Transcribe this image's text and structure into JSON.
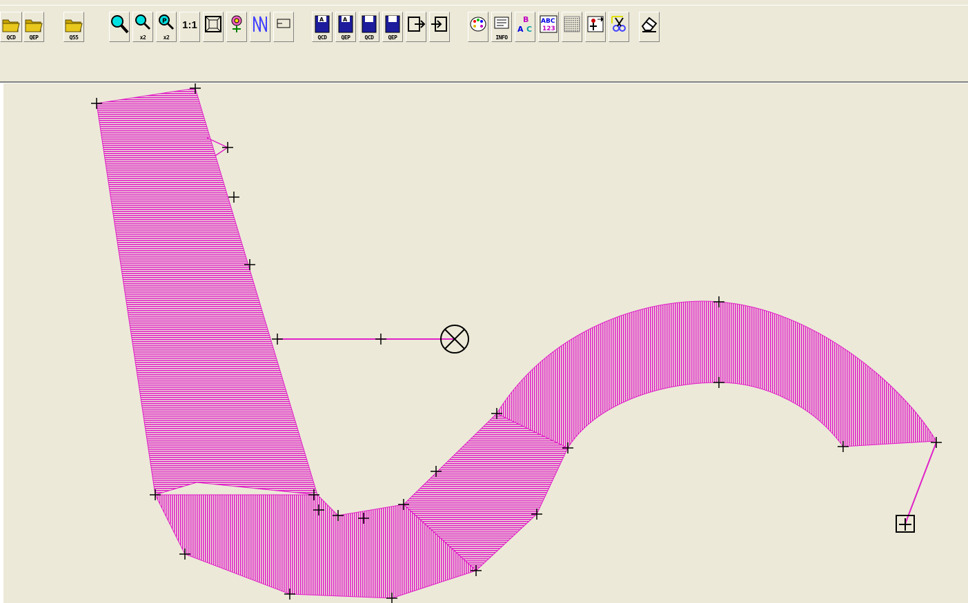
{
  "toolbar": {
    "open_group": [
      {
        "icon": "folder-icon",
        "label": "QCD"
      },
      {
        "icon": "folder-icon",
        "label": "QEP"
      },
      {
        "icon": "folder-icon",
        "label": "Q55"
      }
    ],
    "zoom_group": [
      {
        "icon": "zoom-icon",
        "label": ""
      },
      {
        "icon": "zoom-x2-icon",
        "label": "x2"
      },
      {
        "icon": "zoom-p-x2-icon",
        "label": "x2"
      },
      {
        "icon": "actual-size-icon",
        "label": "1:1"
      },
      {
        "icon": "fit-view-icon",
        "label": ""
      },
      {
        "icon": "flower-icon",
        "label": ""
      },
      {
        "icon": "stitch-path-icon",
        "label": ""
      },
      {
        "icon": "rectangle-icon",
        "label": ""
      }
    ],
    "save_group": [
      {
        "icon": "save-a-icon",
        "label": "QCD"
      },
      {
        "icon": "save-a-icon",
        "label": "QEP"
      },
      {
        "icon": "save-icon",
        "label": "QCD"
      },
      {
        "icon": "save-icon",
        "label": "QEP"
      },
      {
        "icon": "export-icon",
        "label": ""
      },
      {
        "icon": "import-icon",
        "label": ""
      }
    ],
    "tools_group": [
      {
        "icon": "palette-icon",
        "label": ""
      },
      {
        "icon": "info-icon",
        "label": "INFO"
      },
      {
        "icon": "abc-text-icon",
        "label": "ABC"
      },
      {
        "icon": "abc-123-icon",
        "label": "ABC 123"
      },
      {
        "icon": "grid-pattern-icon",
        "label": ""
      },
      {
        "icon": "anchor-frame-icon",
        "label": ""
      },
      {
        "icon": "scissors-icon",
        "label": ""
      },
      {
        "icon": "eraser-icon",
        "label": ""
      }
    ]
  },
  "canvas": {
    "background": "#ece9d8",
    "stitch_color": "#e020c8",
    "marker_color": "#000000",
    "end_marker": "square-cross-icon",
    "origin_marker": "circle-x-icon"
  }
}
